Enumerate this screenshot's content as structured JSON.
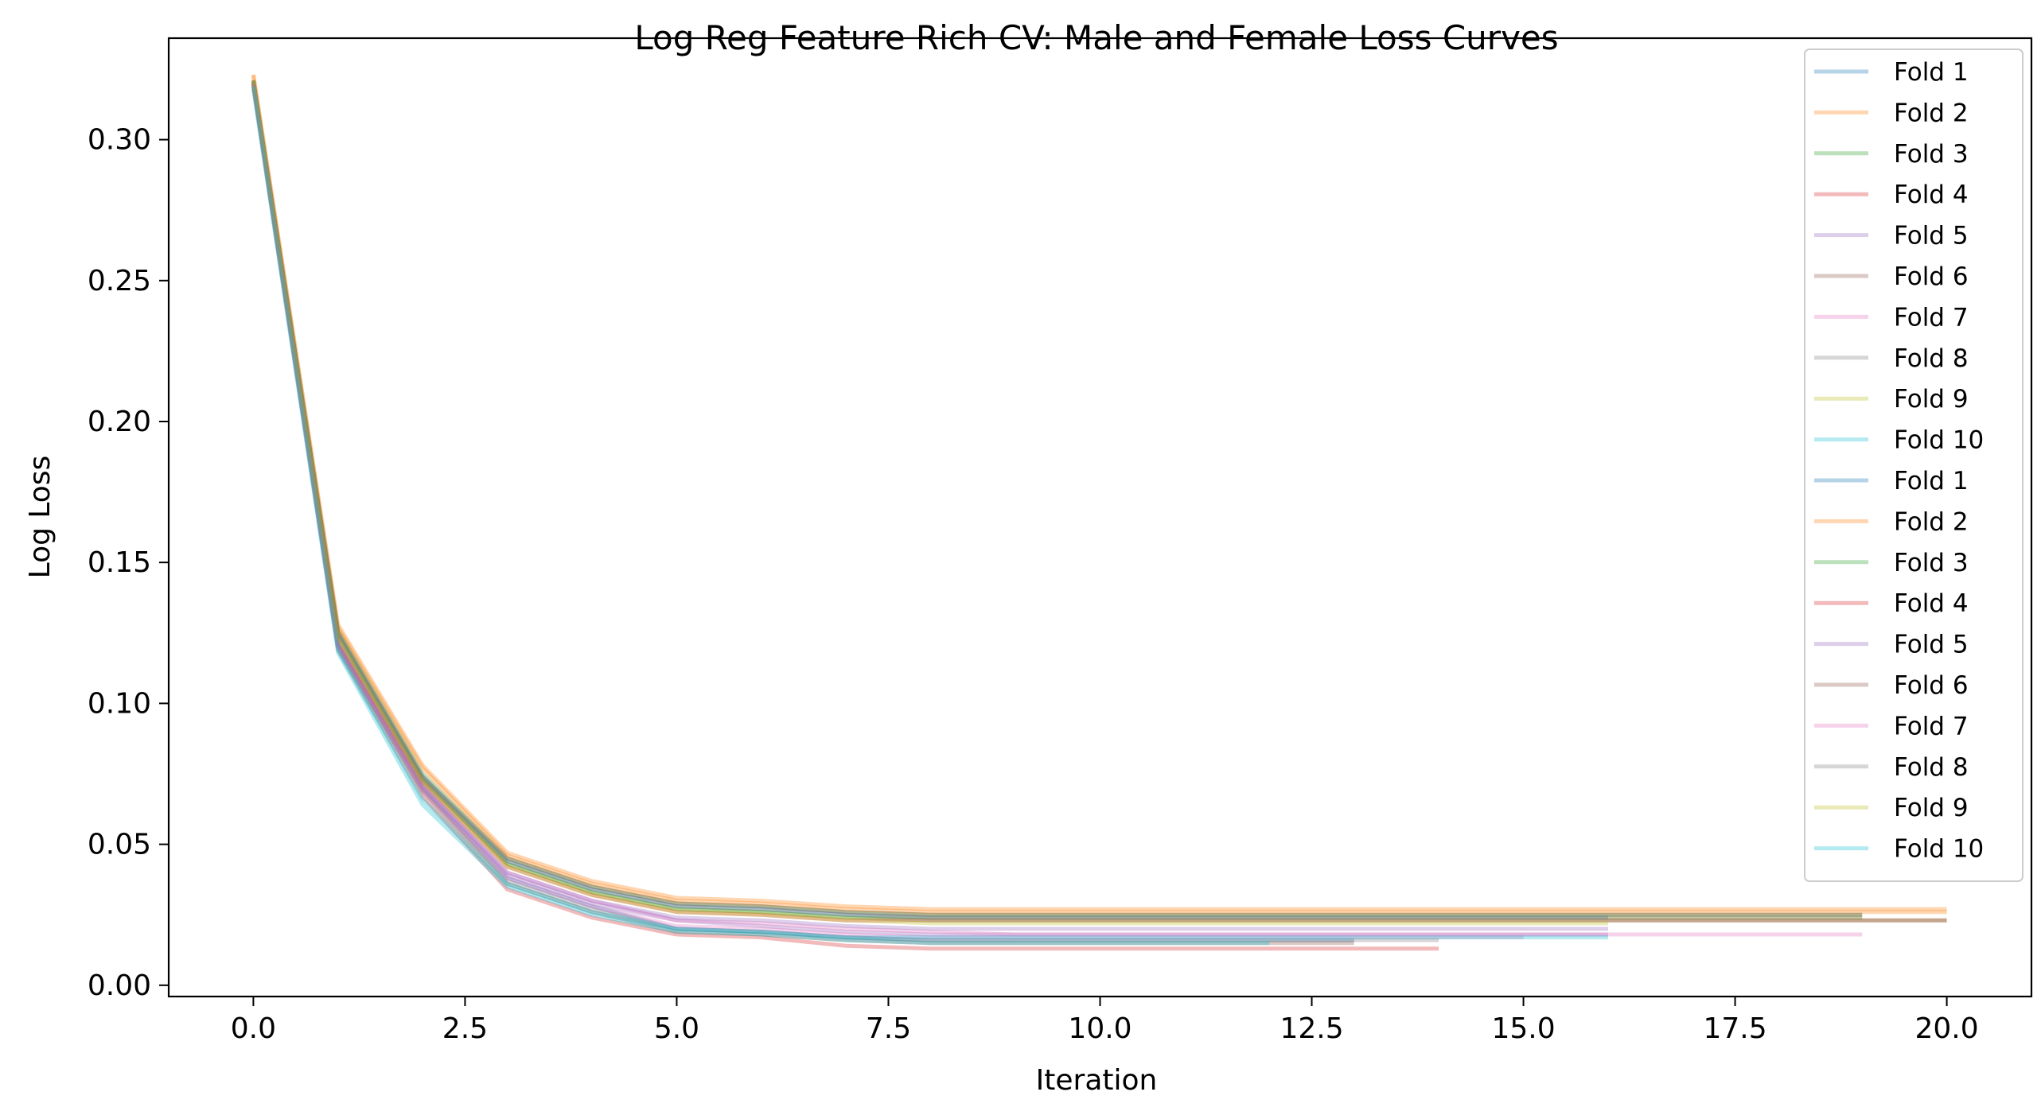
{
  "chart_data": {
    "type": "line",
    "title": "Log Reg Feature Rich CV: Male and Female Loss Curves",
    "xlabel": "Iteration",
    "ylabel": "Log Loss",
    "xlim": [
      -1,
      21.0
    ],
    "ylim": [
      -0.004,
      0.336
    ],
    "xticks": [
      "0.0",
      "2.5",
      "5.0",
      "7.5",
      "10.0",
      "12.5",
      "15.0",
      "17.5",
      "20.0"
    ],
    "xtick_values": [
      0,
      2.5,
      5,
      7.5,
      10,
      12.5,
      15,
      17.5,
      20
    ],
    "yticks": [
      "0.00",
      "0.05",
      "0.10",
      "0.15",
      "0.20",
      "0.25",
      "0.30"
    ],
    "ytick_values": [
      0,
      0.05,
      0.1,
      0.15,
      0.2,
      0.25,
      0.3
    ],
    "grid": false,
    "legend_position": "top-right",
    "series": [
      {
        "name": "Fold 1",
        "color": "#1f77b4",
        "values": [
          0.32,
          0.121,
          0.07,
          0.038,
          0.028,
          0.02,
          0.019,
          0.017,
          0.016,
          0.016,
          0.016,
          0.016,
          0.016,
          0.016
        ]
      },
      {
        "name": "Fold 2",
        "color": "#ff7f0e",
        "values": [
          0.323,
          0.128,
          0.078,
          0.047,
          0.037,
          0.031,
          0.03,
          0.028,
          0.027,
          0.027,
          0.027,
          0.027,
          0.027,
          0.027,
          0.027,
          0.027,
          0.027,
          0.027,
          0.027,
          0.027,
          0.027
        ]
      },
      {
        "name": "Fold 3",
        "color": "#2ca02c",
        "values": [
          0.321,
          0.126,
          0.075,
          0.045,
          0.035,
          0.029,
          0.028,
          0.026,
          0.025,
          0.025,
          0.025,
          0.025,
          0.025,
          0.025,
          0.025,
          0.025,
          0.025,
          0.025,
          0.025,
          0.025
        ]
      },
      {
        "name": "Fold 4",
        "color": "#d62728",
        "values": [
          0.319,
          0.119,
          0.067,
          0.034,
          0.024,
          0.018,
          0.017,
          0.014,
          0.013,
          0.013,
          0.013,
          0.013,
          0.013,
          0.013,
          0.013
        ]
      },
      {
        "name": "Fold 5",
        "color": "#9467bd",
        "values": [
          0.32,
          0.121,
          0.071,
          0.039,
          0.029,
          0.023,
          0.021,
          0.019,
          0.018,
          0.018,
          0.018,
          0.018,
          0.018,
          0.018,
          0.018,
          0.018,
          0.018
        ]
      },
      {
        "name": "Fold 6",
        "color": "#8c564b",
        "values": [
          0.32,
          0.12,
          0.069,
          0.036,
          0.026,
          0.019,
          0.018,
          0.016,
          0.015,
          0.015,
          0.015,
          0.015,
          0.015,
          0.015
        ]
      },
      {
        "name": "Fold 7",
        "color": "#e377c2",
        "values": [
          0.32,
          0.121,
          0.071,
          0.04,
          0.03,
          0.023,
          0.022,
          0.02,
          0.019,
          0.018,
          0.018,
          0.018,
          0.018,
          0.018,
          0.018,
          0.018,
          0.018,
          0.018,
          0.018,
          0.018
        ]
      },
      {
        "name": "Fold 8",
        "color": "#7f7f7f",
        "values": [
          0.32,
          0.12,
          0.069,
          0.037,
          0.027,
          0.02,
          0.019,
          0.017,
          0.016,
          0.016,
          0.016,
          0.016,
          0.016,
          0.016,
          0.016
        ]
      },
      {
        "name": "Fold 9",
        "color": "#bcbd22",
        "values": [
          0.321,
          0.124,
          0.073,
          0.043,
          0.033,
          0.027,
          0.026,
          0.024,
          0.024,
          0.024,
          0.024,
          0.024,
          0.024,
          0.024,
          0.024,
          0.024,
          0.024,
          0.024,
          0.024,
          0.024
        ]
      },
      {
        "name": "Fold 10",
        "color": "#17becf",
        "values": [
          0.318,
          0.118,
          0.064,
          0.035,
          0.025,
          0.019,
          0.018,
          0.016,
          0.015,
          0.015,
          0.015,
          0.015,
          0.015
        ]
      },
      {
        "name": "Fold 1",
        "color": "#1f77b4",
        "values": [
          0.321,
          0.125,
          0.074,
          0.044,
          0.034,
          0.028,
          0.027,
          0.025,
          0.024,
          0.024,
          0.024,
          0.024,
          0.024,
          0.024,
          0.024,
          0.024,
          0.024
        ]
      },
      {
        "name": "Fold 2",
        "color": "#ff7f0e",
        "values": [
          0.323,
          0.127,
          0.077,
          0.046,
          0.036,
          0.03,
          0.029,
          0.027,
          0.026,
          0.026,
          0.026,
          0.026,
          0.026,
          0.026,
          0.026,
          0.026,
          0.026,
          0.026,
          0.026,
          0.026,
          0.026
        ]
      },
      {
        "name": "Fold 3",
        "color": "#2ca02c",
        "values": [
          0.321,
          0.124,
          0.073,
          0.043,
          0.033,
          0.027,
          0.026,
          0.024,
          0.023,
          0.023,
          0.023,
          0.023,
          0.023,
          0.023,
          0.023,
          0.023,
          0.023,
          0.023,
          0.023,
          0.023,
          0.023
        ]
      },
      {
        "name": "Fold 4",
        "color": "#d62728",
        "values": [
          0.32,
          0.122,
          0.072,
          0.042,
          0.032,
          0.026,
          0.025,
          0.023,
          0.023,
          0.023,
          0.023,
          0.023,
          0.023,
          0.023,
          0.023,
          0.023,
          0.023,
          0.023,
          0.023,
          0.023,
          0.023
        ]
      },
      {
        "name": "Fold 5",
        "color": "#9467bd",
        "values": [
          0.32,
          0.121,
          0.07,
          0.04,
          0.03,
          0.024,
          0.023,
          0.021,
          0.02,
          0.02,
          0.02,
          0.02,
          0.02,
          0.02,
          0.02,
          0.02,
          0.02
        ]
      },
      {
        "name": "Fold 6",
        "color": "#8c564b",
        "values": [
          0.321,
          0.125,
          0.074,
          0.045,
          0.035,
          0.029,
          0.028,
          0.026,
          0.025,
          0.025,
          0.025,
          0.025,
          0.025,
          0.025,
          0.025,
          0.025,
          0.025,
          0.025,
          0.025,
          0.025
        ]
      },
      {
        "name": "Fold 7",
        "color": "#e377c2",
        "values": [
          0.32,
          0.12,
          0.069,
          0.038,
          0.028,
          0.021,
          0.02,
          0.018,
          0.017,
          0.017,
          0.017,
          0.017,
          0.017,
          0.017,
          0.017,
          0.017
        ]
      },
      {
        "name": "Fold 8",
        "color": "#7f7f7f",
        "values": [
          0.321,
          0.124,
          0.073,
          0.044,
          0.034,
          0.028,
          0.027,
          0.025,
          0.024,
          0.024,
          0.024,
          0.024,
          0.024,
          0.024,
          0.024,
          0.024,
          0.024,
          0.024,
          0.024,
          0.024
        ]
      },
      {
        "name": "Fold 9",
        "color": "#bcbd22",
        "values": [
          0.321,
          0.123,
          0.072,
          0.042,
          0.032,
          0.026,
          0.025,
          0.023,
          0.022,
          0.022,
          0.022,
          0.022,
          0.022,
          0.022,
          0.022,
          0.022,
          0.022
        ]
      },
      {
        "name": "Fold 10",
        "color": "#17becf",
        "values": [
          0.319,
          0.119,
          0.066,
          0.036,
          0.026,
          0.02,
          0.019,
          0.017,
          0.017,
          0.017,
          0.017,
          0.017,
          0.017,
          0.017,
          0.017,
          0.017,
          0.017
        ]
      }
    ]
  }
}
